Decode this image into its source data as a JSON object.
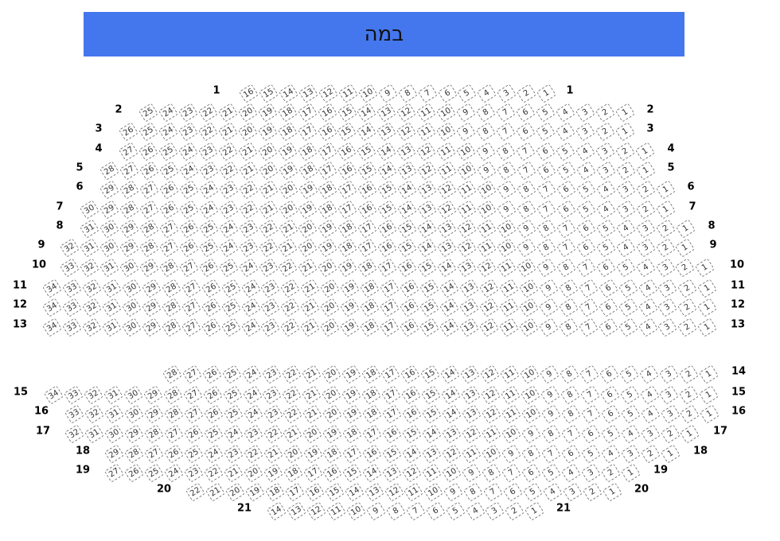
{
  "stage": {
    "label": "במה",
    "color": "#4477ee"
  },
  "rows": [
    {
      "label": "1",
      "seats": 16,
      "labels": "both"
    },
    {
      "label": "2",
      "seats": 25,
      "labels": "both"
    },
    {
      "label": "3",
      "seats": 26,
      "labels": "both"
    },
    {
      "label": "4",
      "seats": 27,
      "labels": "both"
    },
    {
      "label": "5",
      "seats": 28,
      "labels": "both"
    },
    {
      "label": "6",
      "seats": 29,
      "labels": "both"
    },
    {
      "label": "7",
      "seats": 30,
      "labels": "both"
    },
    {
      "label": "8",
      "seats": 31,
      "labels": "both"
    },
    {
      "label": "9",
      "seats": 32,
      "labels": "both"
    },
    {
      "label": "10",
      "seats": 33,
      "labels": "both"
    },
    {
      "label": "11",
      "seats": 34,
      "labels": "both"
    },
    {
      "label": "12",
      "seats": 34,
      "labels": "both"
    },
    {
      "label": "13",
      "seats": 34,
      "labels": "both"
    },
    {
      "label": "14",
      "seats": 28,
      "labels": "right"
    },
    {
      "label": "15",
      "seats": 34,
      "labels": "both"
    },
    {
      "label": "16",
      "seats": 33,
      "labels": "both"
    },
    {
      "label": "17",
      "seats": 32,
      "labels": "both"
    },
    {
      "label": "18",
      "seats": 29,
      "labels": "both"
    },
    {
      "label": "19",
      "seats": 27,
      "labels": "both"
    },
    {
      "label": "20",
      "seats": 22,
      "labels": "both"
    },
    {
      "label": "21",
      "seats": 14,
      "labels": "both"
    }
  ]
}
